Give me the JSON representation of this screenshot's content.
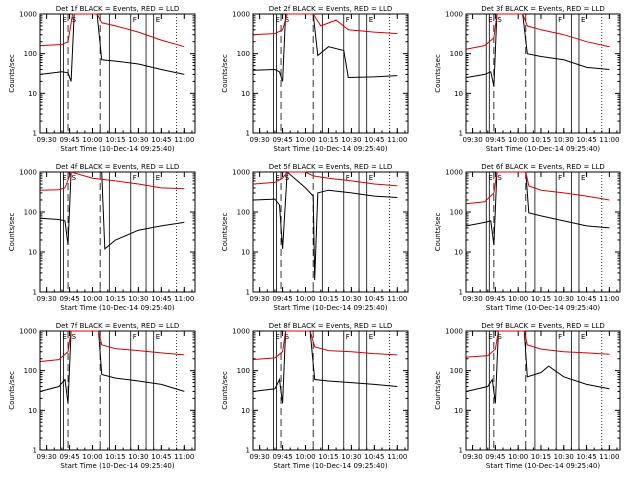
{
  "figure": {
    "ylabel": "Counts/sec",
    "xlabel": "Start Time (10-Dec-14 09:25:40)",
    "colors": {
      "events": "#000000",
      "lld": "#dd0000",
      "frame": "#000000"
    }
  },
  "chart_data": [
    {
      "type": "line",
      "title": "Det 1f BLACK = Events, RED = LLD",
      "xlabel": "Start Time (10-Dec-14 09:25:40)",
      "ylabel": "Counts/sec",
      "ylim": [
        1,
        1000
      ],
      "yscale": "log",
      "x_ticks": [
        "09:30",
        "09:45",
        "10:00",
        "10:15",
        "10:30",
        "10:45",
        "11:00"
      ],
      "y_ticks": [
        "1",
        "10",
        "100",
        "1000"
      ],
      "markers": [
        "E",
        "S",
        "F",
        "E"
      ],
      "series": [
        {
          "name": "Events",
          "color": "#000000",
          "x": [
            "09:26",
            "09:40",
            "09:44",
            "09:46",
            "09:48",
            "10:03",
            "10:06",
            "10:15",
            "10:30",
            "10:45",
            "11:00"
          ],
          "y": [
            30,
            35,
            33,
            20,
            1000,
            1000,
            70,
            65,
            55,
            40,
            30
          ]
        },
        {
          "name": "LLD",
          "color": "#dd0000",
          "x": [
            "09:26",
            "09:40",
            "09:44",
            "09:47",
            "10:03",
            "10:06",
            "10:15",
            "10:30",
            "10:45",
            "11:00"
          ],
          "y": [
            160,
            170,
            200,
            1000,
            1000,
            600,
            500,
            350,
            220,
            150
          ]
        }
      ]
    },
    {
      "type": "line",
      "title": "Det 2f BLACK = Events, RED = LLD",
      "xlabel": "Start Time (10-Dec-14 09:25:40)",
      "ylabel": "Counts/sec",
      "ylim": [
        1,
        1000
      ],
      "yscale": "log",
      "x_ticks": [
        "09:30",
        "09:45",
        "10:00",
        "10:15",
        "10:30",
        "10:45",
        "11:00"
      ],
      "y_ticks": [
        "1",
        "10",
        "100",
        "1000"
      ],
      "markers": [
        "E",
        "S",
        "F",
        "E"
      ],
      "series": [
        {
          "name": "Events",
          "color": "#000000",
          "x": [
            "09:26",
            "09:40",
            "09:43",
            "09:45",
            "09:47",
            "10:05",
            "10:08",
            "10:15",
            "10:25",
            "10:28",
            "10:45",
            "11:00"
          ],
          "y": [
            38,
            40,
            35,
            20,
            1000,
            1000,
            90,
            150,
            120,
            25,
            26,
            28
          ]
        },
        {
          "name": "LLD",
          "color": "#dd0000",
          "x": [
            "09:26",
            "09:40",
            "09:45",
            "09:48",
            "10:05",
            "10:10",
            "10:20",
            "10:28",
            "10:45",
            "11:00"
          ],
          "y": [
            300,
            320,
            400,
            1000,
            1000,
            500,
            700,
            400,
            350,
            320
          ]
        }
      ]
    },
    {
      "type": "line",
      "title": "Det 3f BLACK = Events, RED = LLD",
      "xlabel": "Start Time (10-Dec-14 09:25:40)",
      "ylabel": "Counts/sec",
      "ylim": [
        1,
        1000
      ],
      "yscale": "log",
      "x_ticks": [
        "09:30",
        "09:45",
        "10:00",
        "10:15",
        "10:30",
        "10:45",
        "11:00"
      ],
      "y_ticks": [
        "1",
        "10",
        "100",
        "1000"
      ],
      "markers": [
        "E",
        "S",
        "F",
        "E"
      ],
      "series": [
        {
          "name": "Events",
          "color": "#000000",
          "x": [
            "09:26",
            "09:38",
            "09:42",
            "09:44",
            "09:46",
            "10:03",
            "10:06",
            "10:15",
            "10:30",
            "10:45",
            "11:00"
          ],
          "y": [
            25,
            30,
            35,
            15,
            1000,
            1000,
            100,
            85,
            70,
            45,
            40
          ]
        },
        {
          "name": "LLD",
          "color": "#dd0000",
          "x": [
            "09:26",
            "09:38",
            "09:44",
            "09:46",
            "10:03",
            "10:06",
            "10:15",
            "10:30",
            "10:45",
            "11:00"
          ],
          "y": [
            130,
            160,
            250,
            1000,
            1000,
            500,
            400,
            300,
            200,
            150
          ]
        }
      ]
    },
    {
      "type": "line",
      "title": "Det 4f BLACK = Events, RED = LLD",
      "xlabel": "Start Time (10-Dec-14 09:25:40)",
      "ylabel": "Counts/sec",
      "ylim": [
        1,
        1000
      ],
      "yscale": "log",
      "x_ticks": [
        "09:30",
        "09:45",
        "10:00",
        "10:15",
        "10:30",
        "10:45",
        "11:00"
      ],
      "y_ticks": [
        "1",
        "10",
        "100",
        "1000"
      ],
      "markers": [
        "E",
        "S",
        "F",
        "E"
      ],
      "series": [
        {
          "name": "Events",
          "color": "#000000",
          "x": [
            "09:26",
            "09:38",
            "09:42",
            "09:44",
            "09:46",
            "10:06",
            "10:08",
            "10:15",
            "10:30",
            "10:45",
            "11:00"
          ],
          "y": [
            70,
            65,
            60,
            15,
            1000,
            1000,
            12,
            20,
            35,
            45,
            55
          ]
        },
        {
          "name": "LLD",
          "color": "#dd0000",
          "x": [
            "09:26",
            "09:38",
            "09:42",
            "09:46",
            "10:00",
            "10:15",
            "10:30",
            "10:45",
            "11:00"
          ],
          "y": [
            350,
            360,
            400,
            1000,
            700,
            600,
            500,
            400,
            380
          ]
        }
      ]
    },
    {
      "type": "line",
      "title": "Det 5f BLACK = Events, RED = LLD",
      "xlabel": "Start Time (10-Dec-14 09:25:40)",
      "ylabel": "Counts/sec",
      "ylim": [
        1,
        1000
      ],
      "yscale": "log",
      "x_ticks": [
        "09:30",
        "09:45",
        "10:00",
        "10:15",
        "10:30",
        "10:45",
        "11:00"
      ],
      "y_ticks": [
        "1",
        "10",
        "100",
        "1000"
      ],
      "markers": [
        "E",
        "S",
        "F",
        "E"
      ],
      "series": [
        {
          "name": "Events",
          "color": "#000000",
          "x": [
            "09:26",
            "09:40",
            "09:43",
            "09:45",
            "09:48",
            "10:00",
            "10:05",
            "10:06",
            "10:08",
            "10:15",
            "10:30",
            "10:45",
            "11:00"
          ],
          "y": [
            200,
            210,
            150,
            12,
            1000,
            400,
            250,
            2,
            300,
            350,
            300,
            250,
            230
          ]
        },
        {
          "name": "LLD",
          "color": "#dd0000",
          "x": [
            "09:26",
            "09:40",
            "09:45",
            "09:48",
            "10:00",
            "10:05",
            "10:15",
            "10:30",
            "10:45",
            "11:00"
          ],
          "y": [
            500,
            550,
            700,
            1000,
            1000,
            800,
            700,
            600,
            500,
            450
          ]
        }
      ]
    },
    {
      "type": "line",
      "title": "Det 6f BLACK = Events, RED = LLD",
      "xlabel": "Start Time (10-Dec-14 09:25:40)",
      "ylabel": "Counts/sec",
      "ylim": [
        1,
        1000
      ],
      "yscale": "log",
      "x_ticks": [
        "09:30",
        "09:45",
        "10:00",
        "10:15",
        "10:30",
        "10:45",
        "11:00"
      ],
      "y_ticks": [
        "1",
        "10",
        "100",
        "1000"
      ],
      "markers": [
        "E",
        "S",
        "F",
        "E"
      ],
      "series": [
        {
          "name": "Events",
          "color": "#000000",
          "x": [
            "09:26",
            "09:38",
            "09:42",
            "09:44",
            "09:46",
            "10:05",
            "10:07",
            "10:15",
            "10:30",
            "10:45",
            "11:00"
          ],
          "y": [
            45,
            55,
            60,
            15,
            1000,
            1000,
            95,
            80,
            60,
            45,
            40
          ]
        },
        {
          "name": "LLD",
          "color": "#dd0000",
          "x": [
            "09:26",
            "09:38",
            "09:44",
            "09:46",
            "10:05",
            "10:07",
            "10:15",
            "10:30",
            "10:45",
            "11:00"
          ],
          "y": [
            160,
            180,
            300,
            1000,
            1000,
            450,
            350,
            300,
            250,
            200
          ]
        }
      ]
    },
    {
      "type": "line",
      "title": "Det 7f BLACK = Events, RED = LLD",
      "xlabel": "Start Time (10-Dec-14 09:25:40)",
      "ylabel": "Counts/sec",
      "ylim": [
        1,
        1000
      ],
      "yscale": "log",
      "x_ticks": [
        "09:30",
        "09:45",
        "10:00",
        "10:15",
        "10:30",
        "10:45",
        "11:00"
      ],
      "y_ticks": [
        "1",
        "10",
        "100",
        "1000"
      ],
      "markers": [
        "E",
        "S",
        "F",
        "E"
      ],
      "series": [
        {
          "name": "Events",
          "color": "#000000",
          "x": [
            "09:26",
            "09:38",
            "09:42",
            "09:44",
            "09:46",
            "10:04",
            "10:06",
            "10:15",
            "10:30",
            "10:45",
            "11:00"
          ],
          "y": [
            30,
            40,
            60,
            15,
            1000,
            1000,
            80,
            65,
            55,
            45,
            30
          ]
        },
        {
          "name": "LLD",
          "color": "#dd0000",
          "x": [
            "09:26",
            "09:38",
            "09:44",
            "09:46",
            "10:04",
            "10:06",
            "10:15",
            "10:30",
            "10:45",
            "11:00"
          ],
          "y": [
            170,
            190,
            300,
            1000,
            1000,
            450,
            360,
            320,
            280,
            250
          ]
        }
      ]
    },
    {
      "type": "line",
      "title": "Det 8f BLACK = Events, RED = LLD",
      "xlabel": "Start Time (10-Dec-14 09:25:40)",
      "ylabel": "Counts/sec",
      "ylim": [
        1,
        1000
      ],
      "yscale": "log",
      "x_ticks": [
        "09:30",
        "09:45",
        "10:00",
        "10:15",
        "10:30",
        "10:45",
        "11:00"
      ],
      "y_ticks": [
        "1",
        "10",
        "100",
        "1000"
      ],
      "markers": [
        "E",
        "S",
        "F",
        "E"
      ],
      "series": [
        {
          "name": "Events",
          "color": "#000000",
          "x": [
            "09:26",
            "09:40",
            "09:43",
            "09:45",
            "09:47",
            "10:03",
            "10:06",
            "10:15",
            "10:30",
            "10:45",
            "11:00"
          ],
          "y": [
            30,
            35,
            60,
            15,
            1000,
            1000,
            60,
            55,
            50,
            45,
            40
          ]
        },
        {
          "name": "LLD",
          "color": "#dd0000",
          "x": [
            "09:26",
            "09:40",
            "09:45",
            "09:47",
            "10:03",
            "10:06",
            "10:15",
            "10:30",
            "10:45",
            "11:00"
          ],
          "y": [
            190,
            210,
            300,
            1000,
            1000,
            400,
            320,
            300,
            270,
            250
          ]
        }
      ]
    },
    {
      "type": "line",
      "title": "Det 9f BLACK = Events, RED = LLD",
      "xlabel": "Start Time (10-Dec-14 09:25:40)",
      "ylabel": "Counts/sec",
      "ylim": [
        1,
        1000
      ],
      "yscale": "log",
      "x_ticks": [
        "09:30",
        "09:45",
        "10:00",
        "10:15",
        "10:30",
        "10:45",
        "11:00"
      ],
      "y_ticks": [
        "1",
        "10",
        "100",
        "1000"
      ],
      "markers": [
        "E",
        "S",
        "F",
        "E"
      ],
      "series": [
        {
          "name": "Events",
          "color": "#000000",
          "x": [
            "09:26",
            "09:40",
            "09:43",
            "09:45",
            "09:47",
            "10:04",
            "10:06",
            "10:15",
            "10:20",
            "10:30",
            "10:45",
            "11:00"
          ],
          "y": [
            30,
            40,
            60,
            15,
            1000,
            1000,
            70,
            90,
            130,
            70,
            45,
            35
          ]
        },
        {
          "name": "LLD",
          "color": "#dd0000",
          "x": [
            "09:26",
            "09:40",
            "09:45",
            "09:47",
            "10:04",
            "10:06",
            "10:15",
            "10:30",
            "10:45",
            "11:00"
          ],
          "y": [
            220,
            240,
            350,
            1000,
            1000,
            450,
            350,
            300,
            280,
            260
          ]
        }
      ]
    }
  ]
}
